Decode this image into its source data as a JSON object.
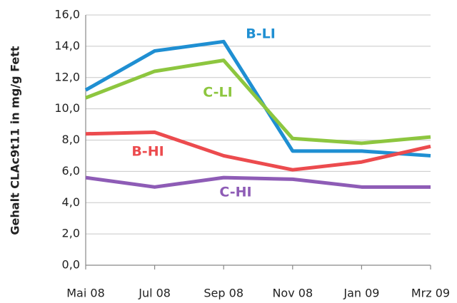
{
  "chart_data": {
    "type": "line",
    "y_label": "Gehalt CLAc9t11 in mg/g Fett",
    "categories": [
      "Mai 08",
      "Jul 08",
      "Sep 08",
      "Nov 08",
      "Jan 09",
      "Mrz 09"
    ],
    "series": [
      {
        "name": "B-LI",
        "color": "#1f8fd2",
        "values": [
          11.2,
          13.7,
          14.3,
          7.3,
          7.3,
          7.0
        ]
      },
      {
        "name": "C-LI",
        "color": "#8dc63f",
        "values": [
          10.7,
          12.4,
          13.1,
          8.1,
          7.8,
          8.2
        ]
      },
      {
        "name": "B-HI",
        "color": "#ec4b4e",
        "values": [
          8.4,
          8.5,
          7.0,
          6.1,
          6.6,
          7.6
        ]
      },
      {
        "name": "C-HI",
        "color": "#8e5cb6",
        "values": [
          5.6,
          5.0,
          5.6,
          5.5,
          5.0,
          5.0
        ]
      }
    ],
    "ylim": [
      0,
      16
    ],
    "yticks": [
      {
        "value": 0,
        "label": "0,0"
      },
      {
        "value": 2,
        "label": "2,0"
      },
      {
        "value": 4,
        "label": "4,0"
      },
      {
        "value": 6,
        "label": "6,0"
      },
      {
        "value": 8,
        "label": "8,0"
      },
      {
        "value": 10,
        "label": "10,0"
      },
      {
        "value": 12,
        "label": "12,0"
      },
      {
        "value": 14,
        "label": "14,0"
      },
      {
        "value": 16,
        "label": "16,0"
      }
    ],
    "grid": true
  }
}
